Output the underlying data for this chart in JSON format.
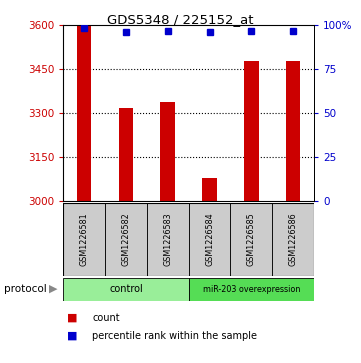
{
  "title": "GDS5348 / 225152_at",
  "samples": [
    "GSM1226581",
    "GSM1226582",
    "GSM1226583",
    "GSM1226584",
    "GSM1226585",
    "GSM1226586"
  ],
  "counts": [
    3597,
    3320,
    3340,
    3080,
    3478,
    3480
  ],
  "percentiles": [
    98.5,
    96.5,
    96.8,
    96.5,
    96.8,
    96.8
  ],
  "ylim_left": [
    3000,
    3600
  ],
  "ylim_right": [
    0,
    100
  ],
  "yticks_left": [
    3000,
    3150,
    3300,
    3450,
    3600
  ],
  "yticks_right": [
    0,
    25,
    50,
    75,
    100
  ],
  "bar_color": "#cc0000",
  "dot_color": "#0000cc",
  "groups": [
    {
      "label": "control",
      "n_samples": 3,
      "color": "#99ee99"
    },
    {
      "label": "miR-203 overexpression",
      "n_samples": 3,
      "color": "#55dd55"
    }
  ],
  "protocol_label": "protocol",
  "legend_count_label": "count",
  "legend_pct_label": "percentile rank within the sample",
  "background_color": "#ffffff",
  "sample_box_color": "#cccccc",
  "bar_width": 0.35
}
